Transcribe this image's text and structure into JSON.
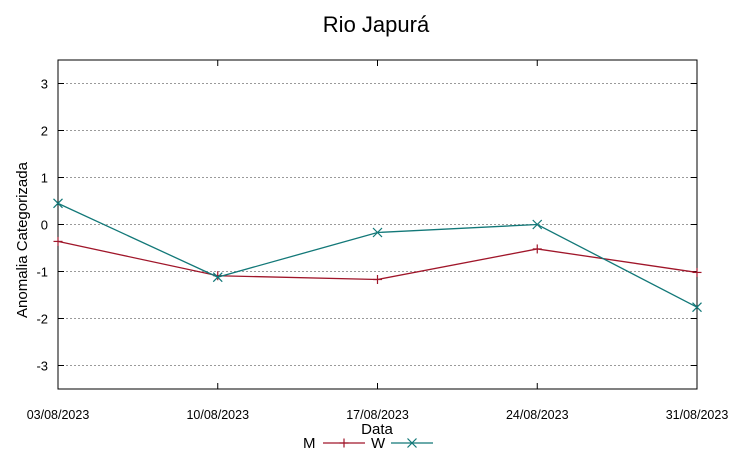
{
  "chart_data": {
    "type": "line",
    "title": "Rio Japurá",
    "xlabel": "Data",
    "ylabel": "Anomalia Categorizada",
    "categories": [
      "03/08/2023",
      "10/08/2023",
      "17/08/2023",
      "24/08/2023",
      "31/08/2023"
    ],
    "ylim": [
      -3.5,
      3.5
    ],
    "yticks": [
      -3,
      -2,
      -1,
      0,
      1,
      2,
      3
    ],
    "ytick_labels": [
      "-3",
      "-2",
      "-1",
      "0",
      "1",
      "2",
      "3"
    ],
    "grid": true,
    "legend_position": "bottom-center",
    "series": [
      {
        "name": "M",
        "color": "#a0162a",
        "marker": "plus",
        "values": [
          -0.36,
          -1.09,
          -1.17,
          -0.52,
          -1.02
        ]
      },
      {
        "name": "W",
        "color": "#127878",
        "marker": "cross",
        "values": [
          0.45,
          -1.12,
          -0.17,
          0.0,
          -1.76
        ]
      }
    ]
  }
}
